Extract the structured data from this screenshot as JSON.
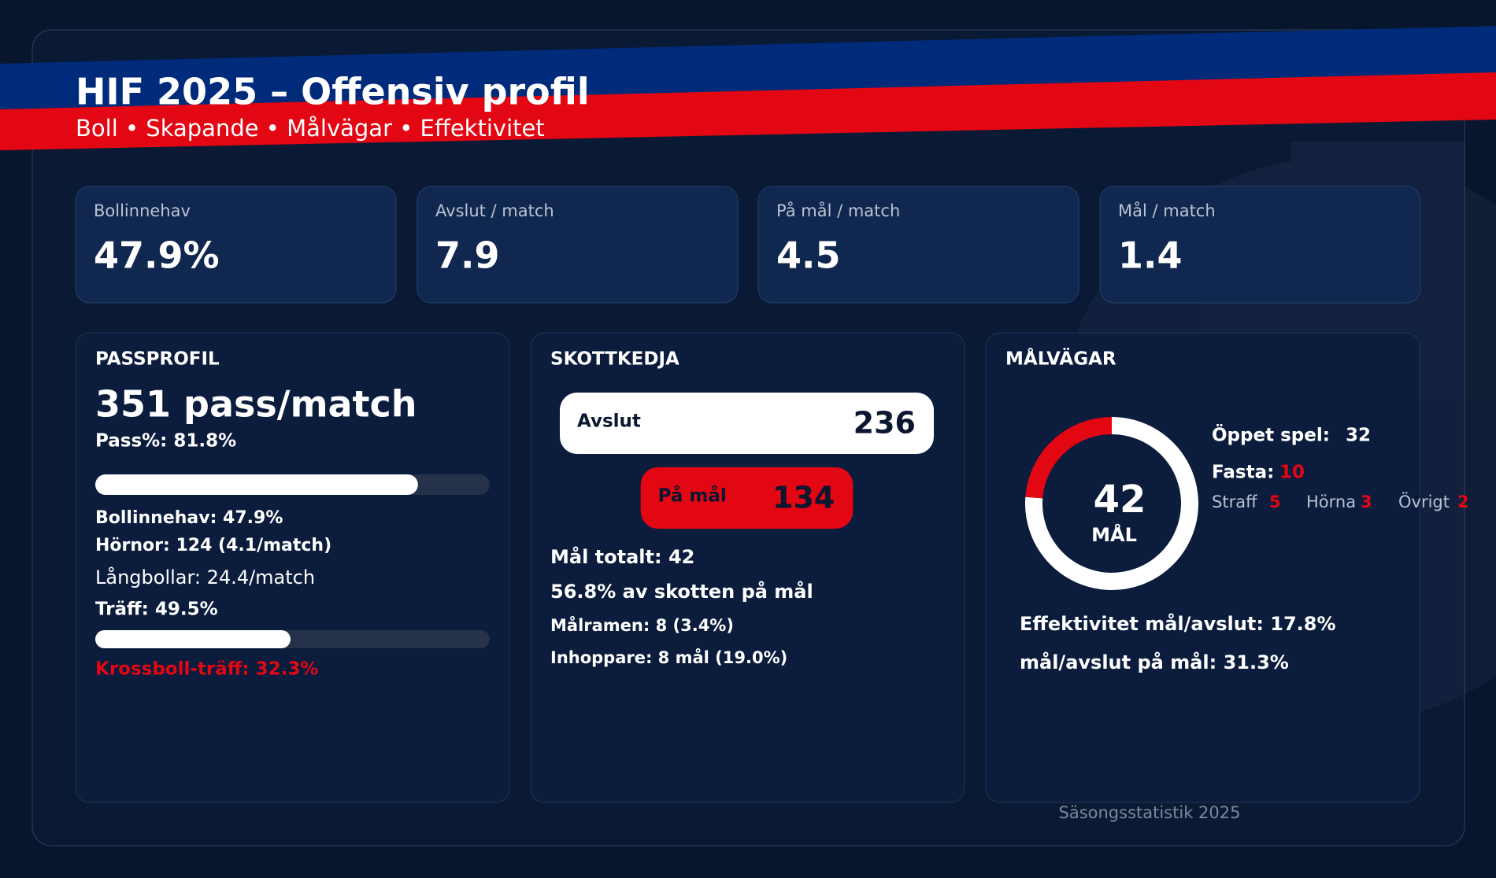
{
  "header": {
    "title": "HIF 2025 – Offensiv profil",
    "subtitle": "Boll • Skapande • Målvägar • Effektivitet"
  },
  "kpis": [
    {
      "label": "Bollinnehav",
      "value": "47.9%"
    },
    {
      "label": "Avslut / match",
      "value": "7.9"
    },
    {
      "label": "På mål / match",
      "value": "4.5"
    },
    {
      "label": "Mål / match",
      "value": "1.4"
    }
  ],
  "passprofil": {
    "title": "PASSPROFIL",
    "headline": "351 pass/match",
    "pass_pct": {
      "text": "Pass%: 81.8%",
      "value": 81.8
    },
    "lines": [
      "Bollinnehav: 47.9%",
      "Hörnor: 124 (4.1/match)",
      "Långbollar: 24.4/match"
    ],
    "traff": {
      "text": "Träff: 49.5%",
      "value": 49.5
    },
    "krossboll": "Krossboll-träff: 32.3%"
  },
  "skottkedja": {
    "title": "SKOTTKEDJA",
    "funnel": [
      {
        "label": "Avslut",
        "value": 236
      },
      {
        "label": "På mål",
        "value": 134
      }
    ],
    "lines": [
      "Mål totalt: 42",
      "56.8% av skotten på mål",
      "Målramen: 8 (3.4%)",
      "Inhoppare: 8 mål (19.0%)"
    ]
  },
  "malvagar": {
    "title": "MÅLVÄGAR",
    "total": 42,
    "total_label": "MÅL",
    "open_play": {
      "label": "Öppet spel:",
      "value": 32
    },
    "set_pieces": {
      "label": "Fasta:",
      "value": 10
    },
    "breakdown": [
      {
        "label": "Straff",
        "value": 5
      },
      {
        "label": "Hörna",
        "value": 3
      },
      {
        "label": "Övrigt",
        "value": 2
      }
    ],
    "lines": [
      "Effektivitet mål/avslut: 17.8%",
      "mål/avslut på mål: 31.3%"
    ]
  },
  "footer": "Säsongsstatistik 2025"
}
